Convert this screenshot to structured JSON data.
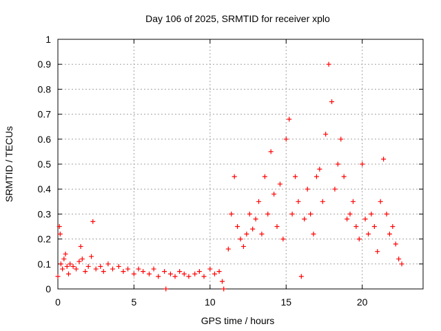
{
  "chart_data": {
    "type": "scatter",
    "title": "Day 106 of 2025, SRMTID for receiver xplo",
    "xlabel": "GPS time / hours",
    "ylabel": "SRMTID / TECUs",
    "xlim": [
      0,
      24
    ],
    "ylim": [
      0,
      1
    ],
    "xticks": [
      0,
      5,
      10,
      15,
      20
    ],
    "xtick_labels": [
      "0",
      "5",
      "10",
      "15",
      "20"
    ],
    "yticks": [
      0,
      0.1,
      0.2,
      0.3,
      0.4,
      0.5,
      0.6,
      0.7,
      0.8,
      0.9,
      1
    ],
    "ytick_labels": [
      "0",
      "0.1",
      "0.2",
      "0.3",
      "0.4",
      "0.5",
      "0.6",
      "0.7",
      "0.8",
      "0.9",
      "1"
    ],
    "grid": true,
    "marker": "+",
    "series": [
      {
        "name": "SRMTID",
        "color": "#ff0000",
        "x": [
          0.0,
          0.1,
          0.15,
          0.2,
          0.3,
          0.4,
          0.5,
          0.6,
          0.7,
          0.8,
          1.0,
          1.2,
          1.4,
          1.5,
          1.6,
          1.8,
          2.0,
          2.2,
          2.3,
          2.5,
          2.8,
          3.0,
          3.3,
          3.6,
          4.0,
          4.3,
          4.6,
          5.0,
          5.3,
          5.6,
          6.0,
          6.3,
          6.6,
          7.0,
          7.1,
          7.4,
          7.7,
          8.0,
          8.3,
          8.6,
          9.0,
          9.3,
          9.6,
          10.0,
          10.3,
          10.6,
          10.8,
          10.9,
          11.2,
          11.4,
          11.6,
          11.8,
          12.0,
          12.2,
          12.4,
          12.6,
          12.8,
          13.0,
          13.2,
          13.4,
          13.6,
          13.8,
          14.0,
          14.2,
          14.4,
          14.6,
          14.8,
          15.0,
          15.2,
          15.4,
          15.6,
          15.8,
          16.0,
          16.2,
          16.4,
          16.6,
          16.8,
          17.0,
          17.2,
          17.4,
          17.6,
          17.8,
          18.0,
          18.2,
          18.4,
          18.6,
          18.8,
          19.0,
          19.2,
          19.4,
          19.6,
          19.8,
          20.0,
          20.2,
          20.4,
          20.6,
          20.8,
          21.0,
          21.2,
          21.4,
          21.6,
          21.8,
          22.0,
          22.2,
          22.4,
          22.6
        ],
        "y": [
          0.05,
          0.25,
          0.22,
          0.1,
          0.08,
          0.12,
          0.14,
          0.09,
          0.06,
          0.1,
          0.09,
          0.08,
          0.11,
          0.17,
          0.12,
          0.07,
          0.09,
          0.13,
          0.27,
          0.08,
          0.09,
          0.07,
          0.1,
          0.08,
          0.09,
          0.07,
          0.08,
          0.06,
          0.08,
          0.07,
          0.06,
          0.08,
          0.05,
          0.07,
          0.0,
          0.06,
          0.05,
          0.07,
          0.06,
          0.05,
          0.06,
          0.07,
          0.05,
          0.08,
          0.06,
          0.07,
          0.03,
          0.0,
          0.16,
          0.3,
          0.45,
          0.25,
          0.2,
          0.17,
          0.22,
          0.3,
          0.24,
          0.28,
          0.35,
          0.22,
          0.45,
          0.3,
          0.55,
          0.38,
          0.25,
          0.42,
          0.2,
          0.6,
          0.68,
          0.3,
          0.45,
          0.35,
          0.05,
          0.28,
          0.4,
          0.3,
          0.22,
          0.45,
          0.48,
          0.35,
          0.62,
          0.9,
          0.75,
          0.4,
          0.5,
          0.6,
          0.45,
          0.28,
          0.3,
          0.35,
          0.25,
          0.2,
          0.5,
          0.28,
          0.22,
          0.3,
          0.25,
          0.15,
          0.35,
          0.52,
          0.3,
          0.22,
          0.25,
          0.18,
          0.12,
          0.1
        ]
      }
    ]
  }
}
